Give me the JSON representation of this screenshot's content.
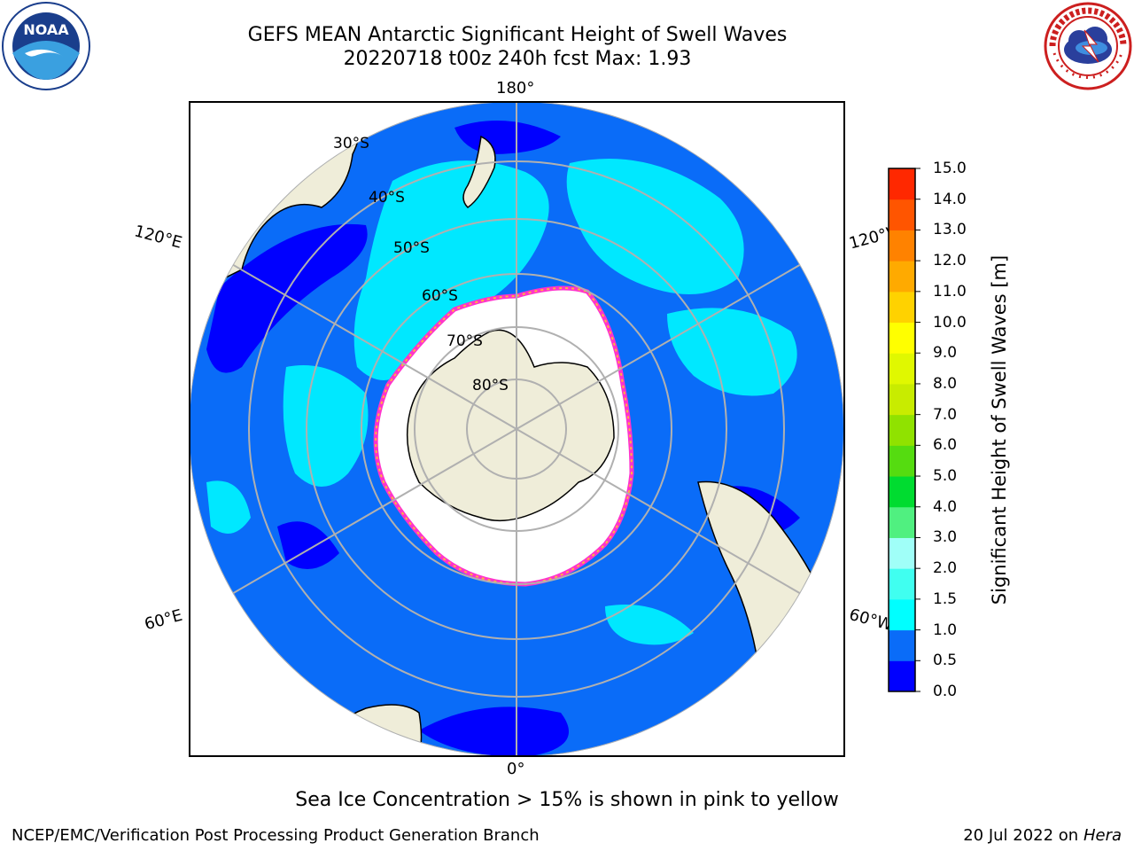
{
  "title": {
    "line1": "GEFS MEAN Antarctic Significant Height of Swell Waves",
    "line2": "20220718 t00z 240h fcst   Max: 1.93"
  },
  "logos": {
    "left": {
      "icon": "noaa-logo",
      "text": "NOAA"
    },
    "right": {
      "icon": "national-weather-service-logo"
    }
  },
  "map": {
    "projection": "south-polar-stereographic",
    "longitude_labels": {
      "top": "180°",
      "bottom": "0°",
      "left_upper": "120°E",
      "left_lower": "60°E",
      "right_upper": "120°W",
      "right_lower": "60°W"
    },
    "latitude_labels": [
      "30°S",
      "40°S",
      "50°S",
      "60°S",
      "70°S",
      "80°S"
    ],
    "colors": {
      "ocean_low": "#0000ff",
      "ocean_main": "#0a6cf8",
      "ocean_mid": "#00e8ff",
      "ice_shelf": "#ffffff",
      "land": "#efedd9",
      "ice_edge": "#ff33cc",
      "ice_edge_inner": "#ffb340"
    }
  },
  "colorbar": {
    "title": "Significant Height of Swell Waves [m]",
    "ticks": [
      "0.0",
      "0.5",
      "1.0",
      "1.5",
      "2.0",
      "3.0",
      "4.0",
      "5.0",
      "6.0",
      "7.0",
      "8.0",
      "9.0",
      "10.0",
      "11.0",
      "12.0",
      "13.0",
      "14.0",
      "15.0"
    ],
    "colors": [
      "#0000ff",
      "#0a6cf8",
      "#00ffff",
      "#40fff0",
      "#a0fff8",
      "#50f080",
      "#00dc30",
      "#55dc10",
      "#90e200",
      "#c8ec00",
      "#e0f800",
      "#ffff00",
      "#ffd200",
      "#ffaa00",
      "#ff8200",
      "#ff5500",
      "#ff2800",
      "#ff0000"
    ]
  },
  "caption": "Sea Ice Concentration > 15% is shown in pink to yellow",
  "footer": {
    "left": "NCEP/EMC/Verification Post Processing Product Generation Branch",
    "right_date": "20 Jul 2022 on ",
    "right_machine": "Hera"
  }
}
